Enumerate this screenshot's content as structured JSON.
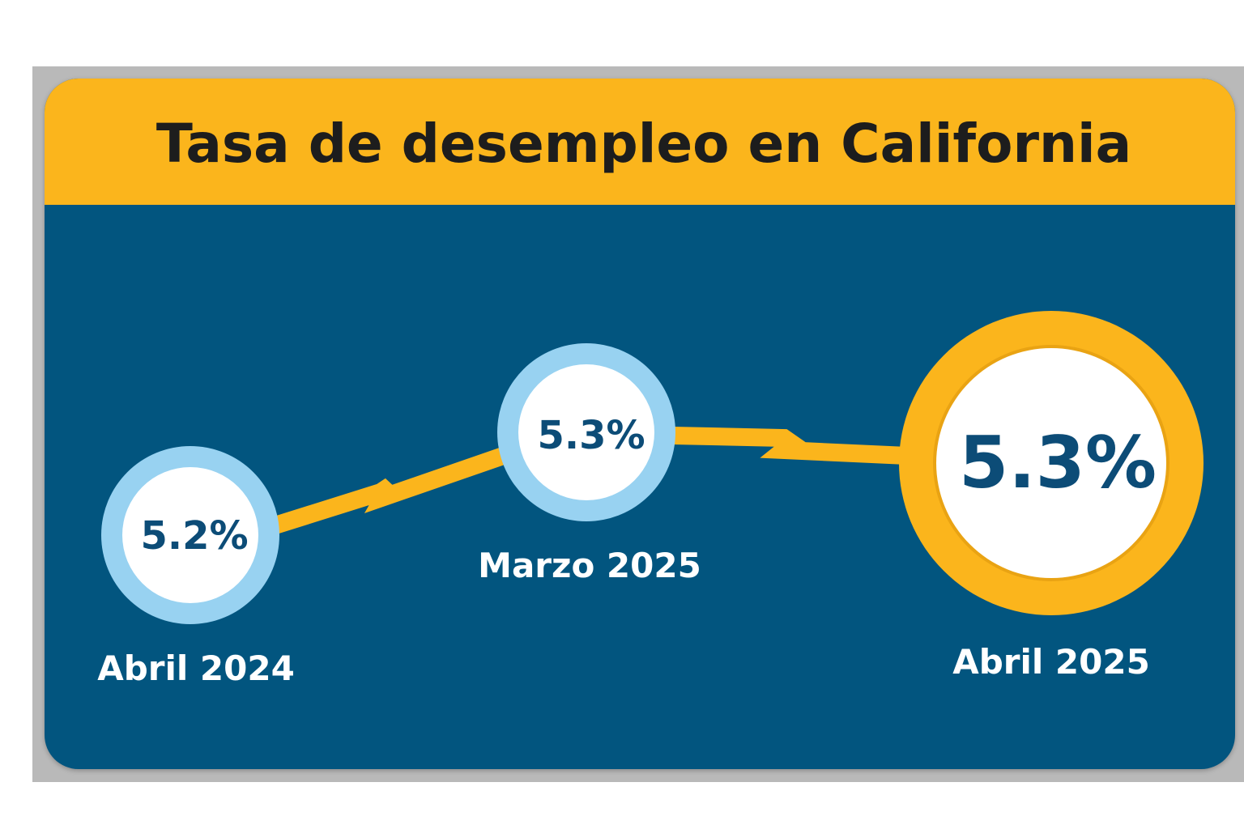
{
  "chart_data": {
    "type": "line",
    "title": "Tasa de desempleo en California",
    "categories": [
      "Abril 2024",
      "Marzo 2025",
      "Abril 2025"
    ],
    "values": [
      5.2,
      5.3,
      5.3
    ],
    "value_labels": [
      "5.2%",
      "5.3%",
      "5.3%"
    ],
    "highlighted_index": 2
  },
  "colors": {
    "header": "#fbb51c",
    "panel": "#02557f",
    "ring": "#98d2f1",
    "highlight_ring": "#fbb51c",
    "value_text": "#0c4c77"
  }
}
